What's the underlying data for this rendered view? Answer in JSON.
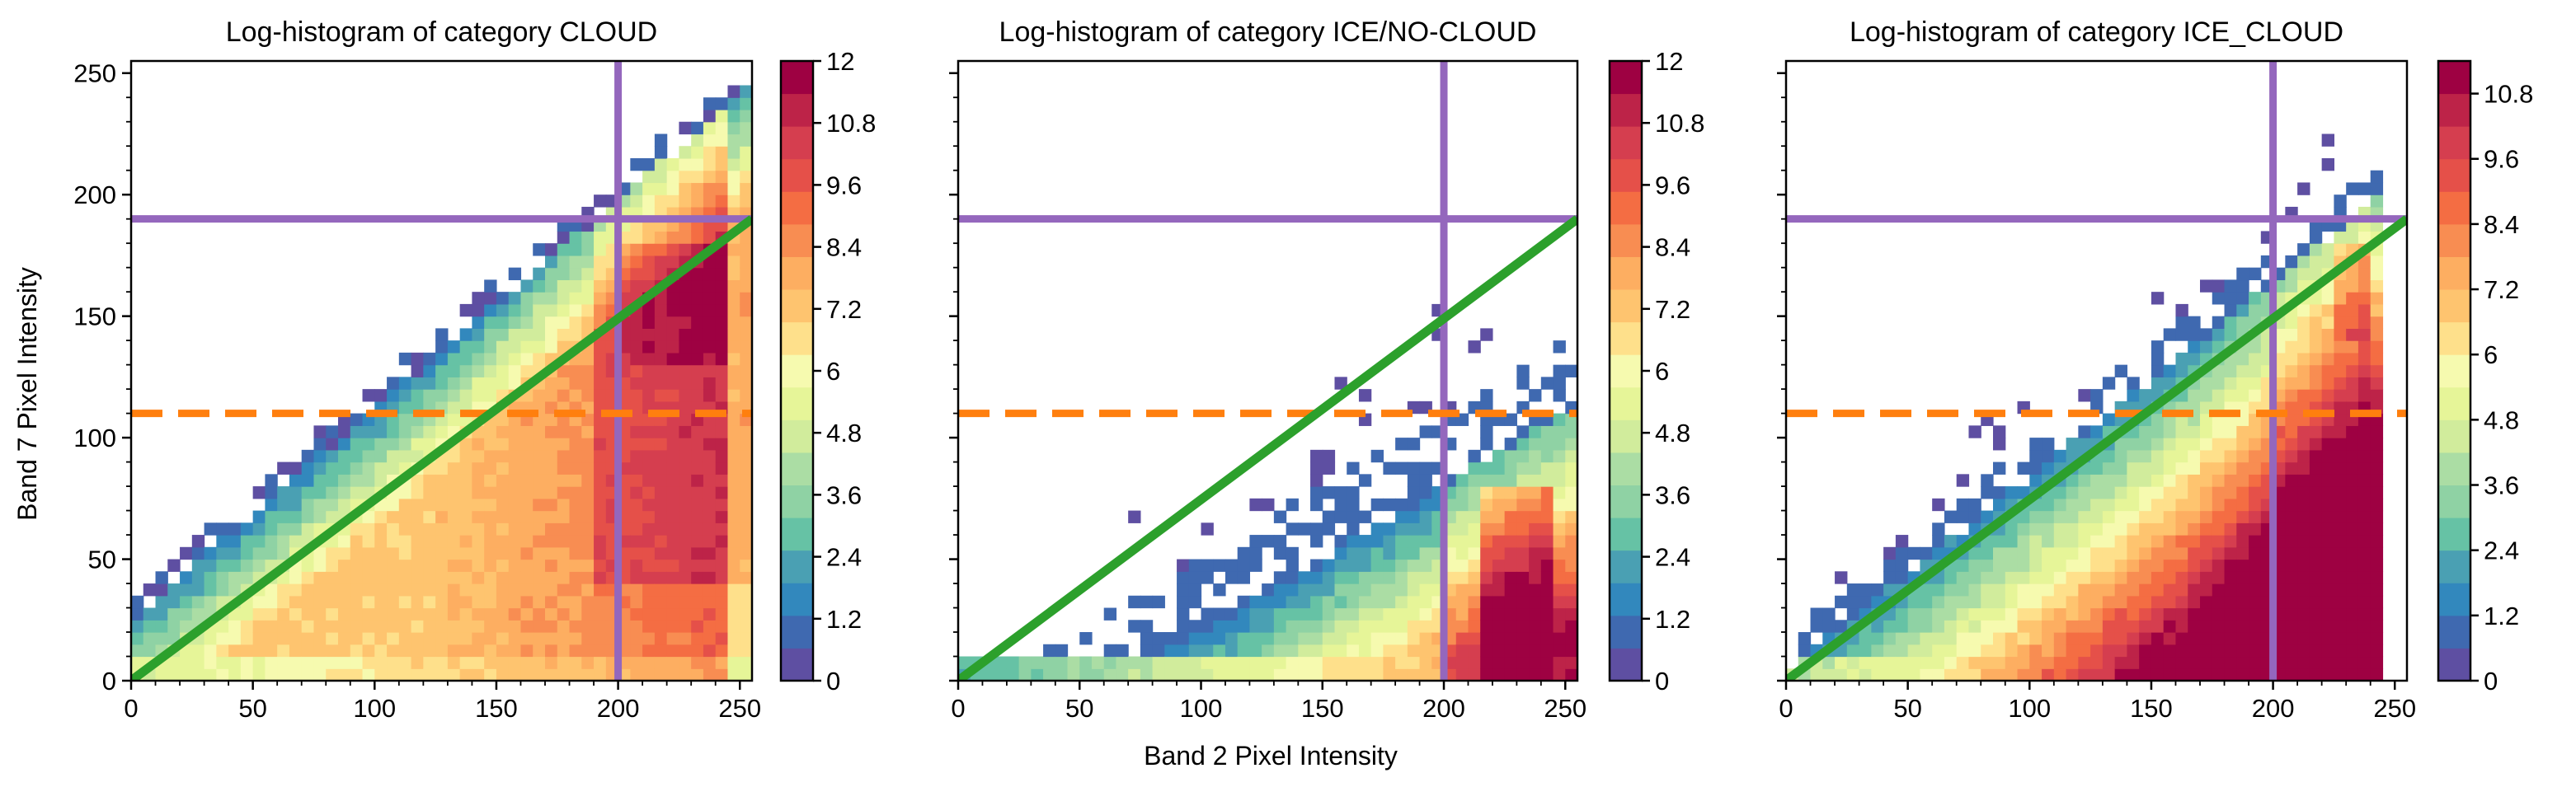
{
  "figure": {
    "xlabel": "Band 2 Pixel Intensity",
    "ylabel": "Band 7 Pixel Intensity"
  },
  "chart_data": [
    {
      "type": "heatmap",
      "title": "Log-histogram of category CLOUD",
      "xlim": [
        0,
        255
      ],
      "ylim": [
        0,
        255
      ],
      "xticks": [
        0,
        50,
        100,
        150,
        200,
        250
      ],
      "yticks": [
        0,
        50,
        100,
        150,
        200,
        250
      ],
      "colorbar": {
        "min": 0,
        "max": 12,
        "ticks": [
          "0",
          "1.2",
          "2.4",
          "3.6",
          "4.8",
          "6",
          "7.2",
          "8.4",
          "9.6",
          "10.8",
          "12"
        ]
      },
      "distribution": "cloud",
      "lines": [
        {
          "name": "",
          "kind": "vertical",
          "x": 200,
          "color": "#9467bd",
          "style": "solid"
        },
        {
          "name": "",
          "kind": "horizontal",
          "y": 190,
          "color": "#9467bd",
          "style": "solid"
        },
        {
          "name": "",
          "kind": "horizontal",
          "y": 110,
          "color": "#ff7f0e",
          "style": "dashed"
        },
        {
          "name": "",
          "kind": "diagonal",
          "x": [
            0,
            255
          ],
          "y": [
            0,
            190
          ],
          "color": "#2ca02c",
          "style": "solid"
        }
      ]
    },
    {
      "type": "heatmap",
      "title": "Log-histogram of category ICE/NO-CLOUD",
      "xlim": [
        0,
        255
      ],
      "ylim": [
        0,
        255
      ],
      "xticks": [
        0,
        50,
        100,
        150,
        200,
        250
      ],
      "yticks": [
        0,
        50,
        100,
        150,
        200,
        250
      ],
      "colorbar": {
        "min": 0,
        "max": 12,
        "ticks": [
          "0",
          "1.2",
          "2.4",
          "3.6",
          "4.8",
          "6",
          "7.2",
          "8.4",
          "9.6",
          "10.8",
          "12"
        ]
      },
      "distribution": "ice",
      "lines": [
        {
          "name": "",
          "kind": "vertical",
          "x": 200,
          "color": "#9467bd",
          "style": "solid"
        },
        {
          "name": "",
          "kind": "horizontal",
          "y": 190,
          "color": "#9467bd",
          "style": "solid"
        },
        {
          "name": "",
          "kind": "horizontal",
          "y": 110,
          "color": "#ff7f0e",
          "style": "dashed"
        },
        {
          "name": "",
          "kind": "diagonal",
          "x": [
            0,
            255
          ],
          "y": [
            0,
            190
          ],
          "color": "#2ca02c",
          "style": "solid"
        }
      ]
    },
    {
      "type": "heatmap",
      "title": "Log-histogram of category ICE_CLOUD",
      "xlim": [
        0,
        255
      ],
      "ylim": [
        0,
        255
      ],
      "xticks": [
        0,
        50,
        100,
        150,
        200,
        250
      ],
      "yticks": [
        0,
        50,
        100,
        150,
        200,
        250
      ],
      "colorbar": {
        "min": 0,
        "max": 11.4,
        "ticks": [
          "0",
          "1.2",
          "2.4",
          "3.6",
          "4.8",
          "6",
          "7.2",
          "8.4",
          "9.6",
          "10.8"
        ]
      },
      "distribution": "icecloud",
      "lines": [
        {
          "name": "",
          "kind": "vertical",
          "x": 200,
          "color": "#9467bd",
          "style": "solid"
        },
        {
          "name": "",
          "kind": "horizontal",
          "y": 190,
          "color": "#9467bd",
          "style": "solid"
        },
        {
          "name": "",
          "kind": "horizontal",
          "y": 110,
          "color": "#ff7f0e",
          "style": "dashed"
        },
        {
          "name": "",
          "kind": "diagonal",
          "x": [
            0,
            255
          ],
          "y": [
            0,
            190
          ],
          "color": "#2ca02c",
          "style": "solid"
        }
      ]
    }
  ],
  "colormap": [
    "#5e4fa2",
    "#3f69b0",
    "#3288bd",
    "#4aa0b3",
    "#66c2a5",
    "#8fd2a4",
    "#abdda4",
    "#d1ec9c",
    "#e6f598",
    "#f6faaf",
    "#fee08b",
    "#fec46f",
    "#fdae61",
    "#f88d52",
    "#f46d43",
    "#e55049",
    "#d53e4f",
    "#bd2348",
    "#9e0142"
  ]
}
